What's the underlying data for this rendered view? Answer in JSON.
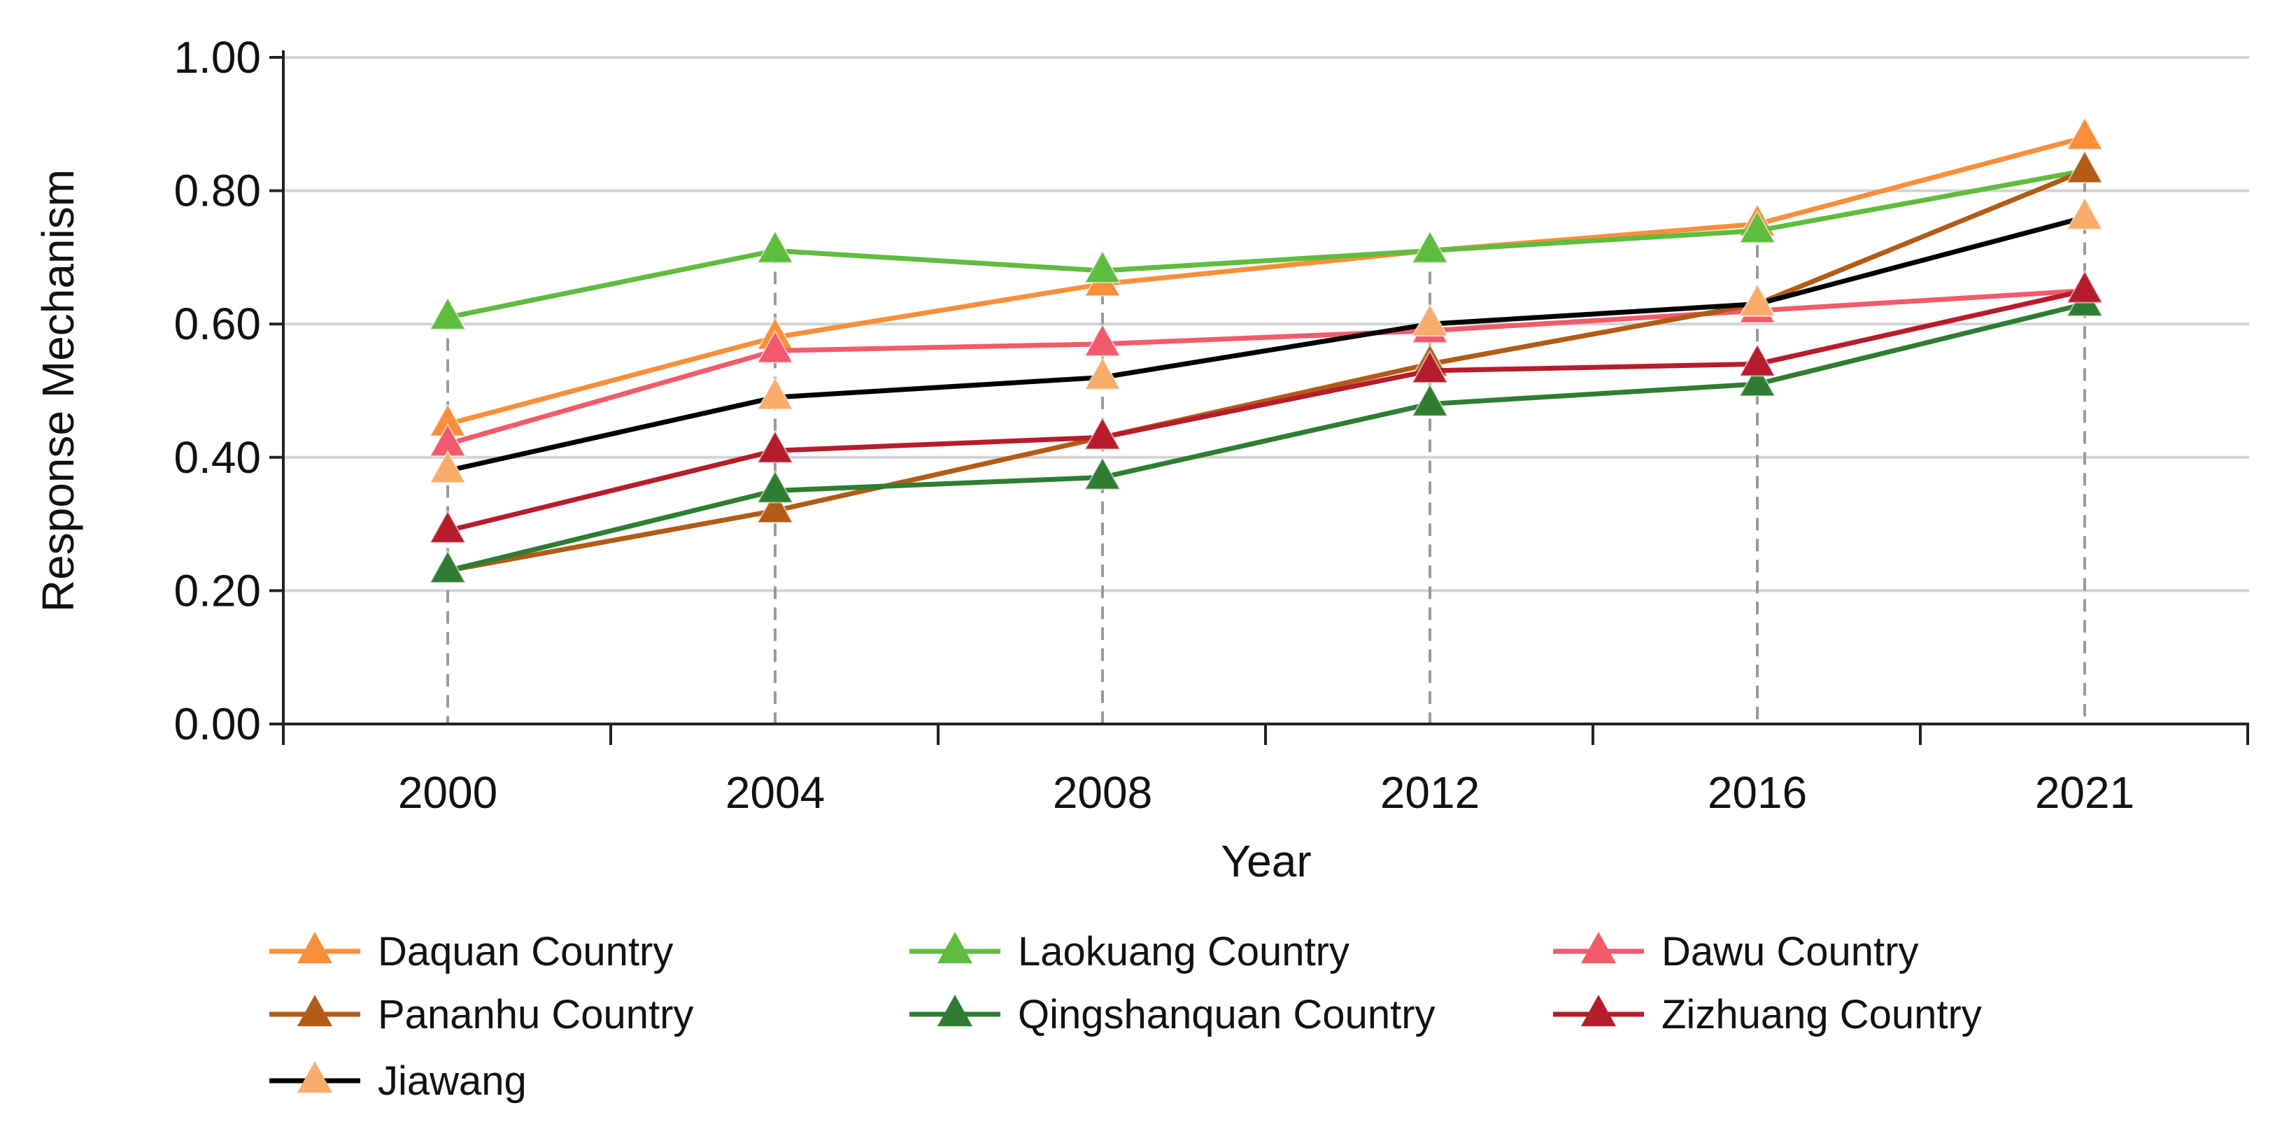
{
  "chart_data": {
    "type": "line",
    "xlabel": "Year",
    "ylabel": "Response Mechanism",
    "categories": [
      "2000",
      "2004",
      "2008",
      "2012",
      "2016",
      "2021"
    ],
    "ylim": [
      0,
      1
    ],
    "yticks": [
      "0.00",
      "0.20",
      "0.40",
      "0.60",
      "0.80",
      "1.00"
    ],
    "grid": "horizontal",
    "drop_lines": "dashed vertical guides from the upper point down to the x-axis",
    "legend_position": "bottom",
    "series": [
      {
        "name": "Daquan Country",
        "color": "#F98F3A",
        "values": [
          0.45,
          0.58,
          0.66,
          0.71,
          0.75,
          0.88
        ]
      },
      {
        "name": "Laokuang Country",
        "color": "#5EBD3E",
        "values": [
          0.61,
          0.71,
          0.68,
          0.71,
          0.74,
          0.83
        ]
      },
      {
        "name": "Dawu Country",
        "color": "#F15B6C",
        "values": [
          0.42,
          0.56,
          0.57,
          0.59,
          0.62,
          0.65
        ]
      },
      {
        "name": "Pananhu Country",
        "color": "#B25B16",
        "values": [
          0.23,
          0.32,
          0.43,
          0.54,
          0.63,
          0.83
        ]
      },
      {
        "name": "Qingshanquan Country",
        "color": "#2E7D32",
        "values": [
          0.23,
          0.35,
          0.37,
          0.48,
          0.51,
          0.63
        ]
      },
      {
        "name": "Zizhuang Country",
        "color": "#B71C2C",
        "values": [
          0.29,
          0.41,
          0.43,
          0.53,
          0.54,
          0.65
        ]
      },
      {
        "name": "Jiawang",
        "color": "#000000",
        "marker_color": "#F9AC6B",
        "values": [
          0.38,
          0.49,
          0.52,
          0.6,
          0.63,
          0.76
        ]
      }
    ]
  }
}
